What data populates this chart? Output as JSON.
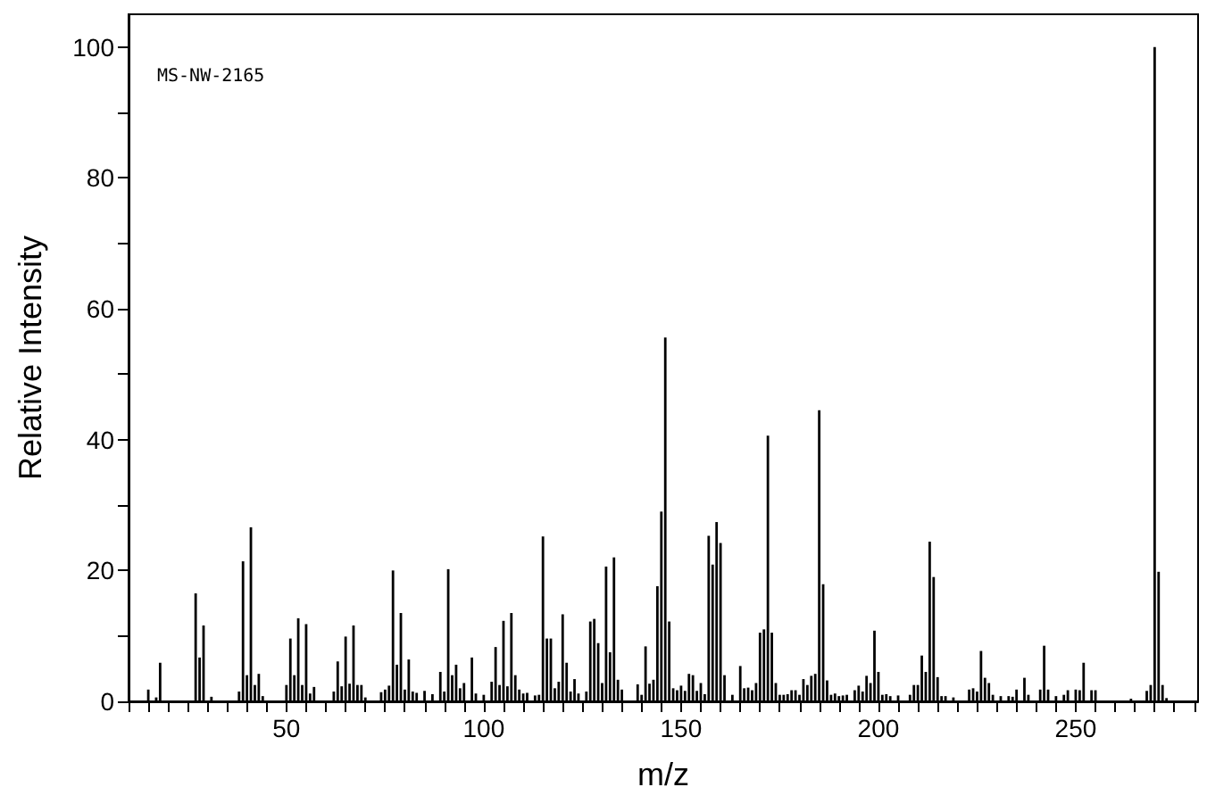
{
  "chart_data": {
    "type": "bar",
    "xlabel": "m/z",
    "ylabel": "Relative Intensity",
    "annotations": [
      "MS-NW-2165"
    ],
    "x": [
      15,
      17,
      18,
      27,
      28,
      29,
      31,
      38,
      39,
      40,
      41,
      42,
      43,
      44,
      50,
      51,
      52,
      53,
      54,
      55,
      56,
      57,
      62,
      63,
      64,
      65,
      66,
      67,
      68,
      69,
      70,
      74,
      75,
      76,
      77,
      78,
      79,
      80,
      81,
      82,
      83,
      85,
      87,
      89,
      90,
      91,
      92,
      93,
      94,
      95,
      97,
      98,
      100,
      102,
      103,
      104,
      105,
      106,
      107,
      108,
      109,
      110,
      111,
      113,
      114,
      115,
      116,
      117,
      118,
      119,
      120,
      121,
      122,
      123,
      124,
      126,
      127,
      128,
      129,
      130,
      131,
      132,
      133,
      134,
      135,
      139,
      140,
      141,
      142,
      143,
      144,
      145,
      146,
      147,
      148,
      149,
      150,
      151,
      152,
      153,
      154,
      155,
      156,
      157,
      158,
      159,
      160,
      161,
      163,
      165,
      166,
      167,
      168,
      169,
      170,
      171,
      172,
      173,
      174,
      175,
      176,
      177,
      178,
      179,
      180,
      181,
      182,
      183,
      184,
      185,
      186,
      187,
      188,
      189,
      190,
      191,
      192,
      194,
      195,
      196,
      197,
      198,
      199,
      200,
      201,
      202,
      203,
      205,
      208,
      209,
      210,
      211,
      212,
      213,
      214,
      215,
      216,
      217,
      219,
      223,
      224,
      225,
      226,
      227,
      228,
      229,
      231,
      233,
      234,
      235,
      237,
      238,
      241,
      242,
      243,
      245,
      247,
      248,
      250,
      251,
      252,
      254,
      255,
      264,
      268,
      269,
      270,
      271,
      272,
      273
    ],
    "values": [
      1.8,
      0.6,
      5.9,
      16.5,
      6.7,
      11.6,
      0.7,
      1.5,
      21.4,
      4,
      26.6,
      2.5,
      4.2,
      0.8,
      2.5,
      9.6,
      4,
      12.7,
      2.5,
      11.8,
      1.2,
      2.2,
      1.5,
      6.1,
      2.3,
      9.9,
      2.7,
      11.6,
      2.5,
      2.5,
      0.6,
      1.4,
      1.8,
      2.4,
      20,
      5.6,
      13.5,
      1.8,
      6.4,
      1.5,
      1.3,
      1.6,
      1.1,
      4.5,
      1.5,
      20.2,
      4,
      5.6,
      2,
      2.8,
      6.7,
      1.2,
      1,
      3,
      8.3,
      2.5,
      12.3,
      2.3,
      13.5,
      4,
      1.8,
      1.2,
      1.3,
      0.9,
      1,
      25.2,
      9.6,
      9.6,
      2,
      3,
      13.3,
      5.9,
      1.5,
      3.4,
      1.2,
      1.5,
      12.2,
      12.6,
      8.9,
      2.8,
      20.6,
      7.5,
      22,
      3.3,
      1.8,
      2.6,
      1,
      8.4,
      2.7,
      3.3,
      17.6,
      29,
      55.6,
      12.2,
      2,
      1.7,
      2.4,
      1.6,
      4.2,
      4,
      1.6,
      2.8,
      1.1,
      25.3,
      20.9,
      27.4,
      24.2,
      4,
      1,
      5.4,
      2,
      2.1,
      1.7,
      2.8,
      10.5,
      11,
      40.6,
      10.5,
      2.8,
      1,
      1,
      1.1,
      1.7,
      1.7,
      1,
      3.4,
      2.5,
      3.9,
      4.2,
      44.5,
      17.9,
      3.2,
      1,
      1.2,
      0.8,
      0.9,
      1,
      1.7,
      2.4,
      1.5,
      3.9,
      2.8,
      10.8,
      4.5,
      1,
      1.1,
      0.8,
      0.9,
      1,
      2.5,
      2.5,
      7,
      4.5,
      24.4,
      19,
      3.7,
      0.8,
      0.8,
      0.6,
      1.8,
      2,
      1.5,
      7.7,
      3.6,
      2.8,
      1,
      0.8,
      0.8,
      0.7,
      1.8,
      3.6,
      1,
      1.8,
      8.5,
      1.8,
      0.8,
      1,
      1.7,
      1.8,
      1.7,
      5.9,
      1.7,
      1.7,
      0.4,
      1.6,
      2.5,
      100,
      19.8,
      2.5,
      0.5
    ],
    "color": "#000000",
    "xlim": [
      10,
      281
    ],
    "xticks": [
      {
        "value": 10,
        "label": null
      },
      {
        "value": 15,
        "label": null
      },
      {
        "value": 20,
        "label": null
      },
      {
        "value": 25,
        "label": null
      },
      {
        "value": 30,
        "label": null
      },
      {
        "value": 35,
        "label": null
      },
      {
        "value": 40,
        "label": null
      },
      {
        "value": 45,
        "label": null
      },
      50,
      {
        "value": 55,
        "label": null
      },
      {
        "value": 60,
        "label": null
      },
      {
        "value": 65,
        "label": null
      },
      {
        "value": 70,
        "label": null
      },
      {
        "value": 75,
        "label": null
      },
      {
        "value": 80,
        "label": null
      },
      {
        "value": 85,
        "label": null
      },
      {
        "value": 90,
        "label": null
      },
      {
        "value": 95,
        "label": null
      },
      100,
      {
        "value": 105,
        "label": null
      },
      {
        "value": 110,
        "label": null
      },
      {
        "value": 115,
        "label": null
      },
      {
        "value": 120,
        "label": null
      },
      {
        "value": 125,
        "label": null
      },
      {
        "value": 130,
        "label": null
      },
      {
        "value": 135,
        "label": null
      },
      {
        "value": 140,
        "label": null
      },
      {
        "value": 145,
        "label": null
      },
      150,
      {
        "value": 155,
        "label": null
      },
      {
        "value": 160,
        "label": null
      },
      {
        "value": 165,
        "label": null
      },
      {
        "value": 170,
        "label": null
      },
      {
        "value": 175,
        "label": null
      },
      {
        "value": 180,
        "label": null
      },
      {
        "value": 185,
        "label": null
      },
      {
        "value": 190,
        "label": null
      },
      {
        "value": 195,
        "label": null
      },
      200,
      {
        "value": 205,
        "label": null
      },
      {
        "value": 210,
        "label": null
      },
      {
        "value": 215,
        "label": null
      },
      {
        "value": 220,
        "label": null
      },
      {
        "value": 225,
        "label": null
      },
      {
        "value": 230,
        "label": null
      },
      {
        "value": 235,
        "label": null
      },
      {
        "value": 240,
        "label": null
      },
      {
        "value": 245,
        "label": null
      },
      250,
      {
        "value": 255,
        "label": null
      },
      {
        "value": 260,
        "label": null
      },
      {
        "value": 265,
        "label": null
      },
      {
        "value": 270,
        "label": null
      },
      {
        "value": 275,
        "label": null
      },
      {
        "value": 280,
        "label": null
      }
    ],
    "ylim": [
      0,
      105
    ],
    "yticks": [
      0,
      {
        "value": 10,
        "label": null
      },
      20,
      {
        "value": 30,
        "label": null
      },
      40,
      {
        "value": 50,
        "label": null
      },
      60,
      {
        "value": 70,
        "label": null
      },
      80,
      {
        "value": 90,
        "label": null
      },
      100
    ],
    "grid": false
  }
}
